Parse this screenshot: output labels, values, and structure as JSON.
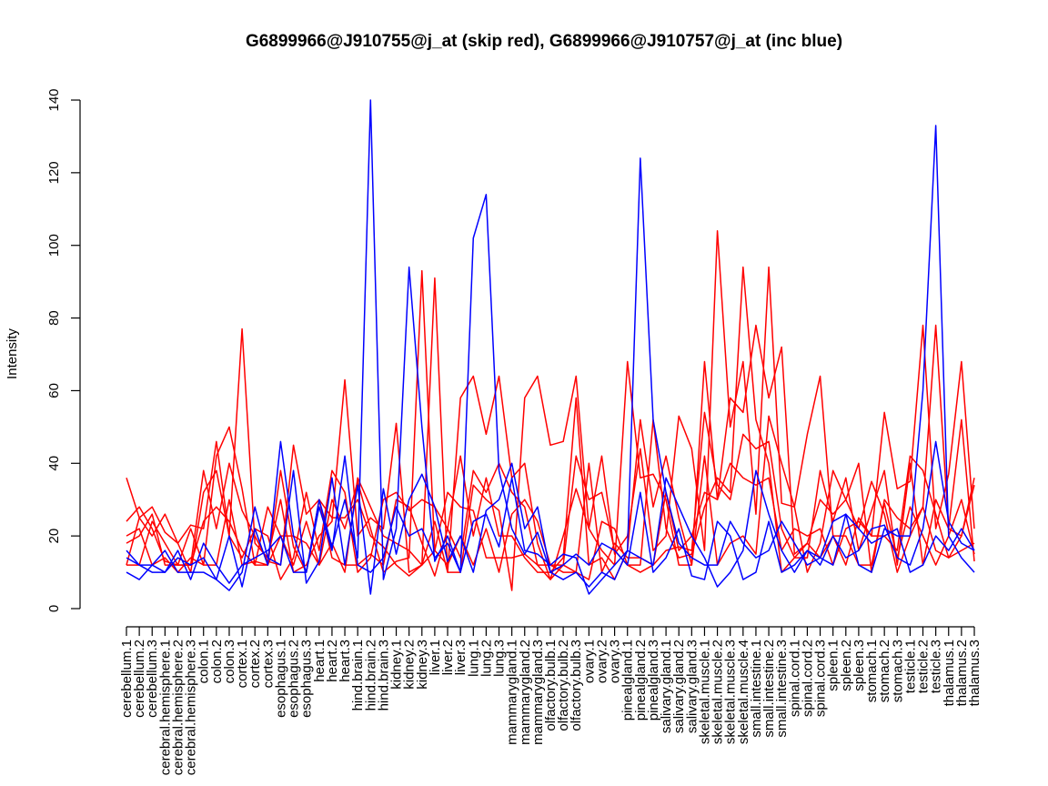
{
  "chart_data": {
    "type": "line",
    "title": "G6899966@J910755@j_at (skip red), G6899966@J910757@j_at (inc blue)",
    "xlabel": "",
    "ylabel": "Intensity",
    "ylim": [
      0,
      140
    ],
    "yticks": [
      0,
      20,
      40,
      60,
      80,
      100,
      120,
      140
    ],
    "grid": false,
    "legend": "none",
    "categories": [
      "cerebellum.1",
      "cerebellum.2",
      "cerebellum.3",
      "cerebral.hemisphere.1",
      "cerebral.hemisphere.2",
      "cerebral.hemisphere.3",
      "colon.1",
      "colon.2",
      "colon.3",
      "cortex.1",
      "cortex.2",
      "cortex.3",
      "esophagus.1",
      "esophagus.2",
      "esophagus.3",
      "heart.1",
      "heart.2",
      "heart.3",
      "hind.brain.1",
      "hind.brain.2",
      "hind.brain.3",
      "kidney.1",
      "kidney.2",
      "kidney.3",
      "liver.1",
      "liver.2",
      "liver.3",
      "lung.1",
      "lung.2",
      "lung.3",
      "mammarygland.1",
      "mammarygland.2",
      "mammarygland.3",
      "olfactory.bulb.1",
      "olfactory.bulb.2",
      "olfactory.bulb.3",
      "ovary.1",
      "ovary.2",
      "ovary.3",
      "pinealgland.1",
      "pinealgland.2",
      "pinealgland.3",
      "salivary.gland.1",
      "salivary.gland.2",
      "salivary.gland.3",
      "skeletal.muscle.1",
      "skeletal.muscle.2",
      "skeletal.muscle.3",
      "skeletal.muscle.4",
      "small.intestine.1",
      "small.intestine.2",
      "small.intestine.3",
      "spinal.cord.1",
      "spinal.cord.2",
      "spinal.cord.3",
      "spleen.1",
      "spleen.2",
      "spleen.3",
      "stomach.1",
      "stomach.2",
      "stomach.3",
      "testicle.1",
      "testicle.2",
      "testicle.3",
      "thalamus.1",
      "thalamus.2",
      "thalamus.3"
    ],
    "colors": {
      "skip": "#ff0000",
      "inc": "#0000ff"
    },
    "series": [
      {
        "group": "skip",
        "values": [
          36,
          25,
          28,
          21,
          18,
          23,
          22,
          46,
          20,
          77,
          18,
          14,
          30,
          10,
          12,
          20,
          24,
          63,
          20,
          25,
          22,
          51,
          10,
          12,
          24,
          10,
          10,
          34,
          30,
          27,
          5,
          58,
          64,
          45,
          46,
          64,
          22,
          16,
          12,
          68,
          36,
          37,
          30,
          12,
          12,
          42,
          12,
          18,
          20,
          15,
          53,
          40,
          28,
          10,
          18,
          38,
          30,
          40,
          10,
          30,
          25,
          22,
          28,
          78,
          22,
          20,
          34
        ]
      },
      {
        "group": "skip",
        "values": [
          12,
          12,
          24,
          18,
          12,
          22,
          12,
          42,
          50,
          33,
          12,
          12,
          38,
          17,
          10,
          30,
          25,
          25,
          30,
          20,
          17,
          12,
          9,
          12,
          91,
          10,
          58,
          64,
          48,
          64,
          36,
          40,
          18,
          8,
          20,
          33,
          22,
          42,
          15,
          20,
          44,
          16,
          20,
          53,
          44,
          16,
          104,
          50,
          68,
          26,
          94,
          29,
          28,
          48,
          64,
          20,
          12,
          25,
          20,
          54,
          33,
          35,
          78,
          22,
          37,
          68,
          22
        ]
      },
      {
        "group": "skip",
        "values": [
          24,
          28,
          22,
          13,
          12,
          12,
          38,
          22,
          40,
          27,
          20,
          13,
          12,
          45,
          26,
          30,
          14,
          12,
          12,
          15,
          12,
          30,
          28,
          18,
          9,
          22,
          42,
          20,
          36,
          20,
          20,
          14,
          10,
          10,
          14,
          58,
          12,
          14,
          8,
          16,
          52,
          28,
          42,
          25,
          12,
          68,
          30,
          58,
          54,
          78,
          58,
          72,
          15,
          18,
          14,
          20,
          20,
          12,
          12,
          29,
          14,
          28,
          20,
          12,
          20,
          30,
          15
        ]
      },
      {
        "group": "skip",
        "values": [
          20,
          22,
          12,
          14,
          10,
          14,
          12,
          12,
          30,
          12,
          13,
          12,
          20,
          12,
          24,
          12,
          18,
          10,
          36,
          28,
          20,
          18,
          16,
          12,
          16,
          32,
          28,
          27,
          14,
          14,
          14,
          15,
          12,
          12,
          10,
          10,
          8,
          24,
          22,
          12,
          12,
          52,
          22,
          14,
          15,
          28,
          36,
          32,
          94,
          52,
          40,
          10,
          14,
          14,
          38,
          24,
          36,
          16,
          27,
          38,
          12,
          40,
          12,
          30,
          22,
          52,
          13
        ]
      },
      {
        "group": "skip",
        "values": [
          12,
          25,
          20,
          26,
          18,
          10,
          32,
          38,
          20,
          14,
          22,
          20,
          8,
          14,
          32,
          16,
          38,
          32,
          10,
          14,
          30,
          32,
          27,
          30,
          28,
          22,
          14,
          38,
          32,
          40,
          32,
          28,
          12,
          8,
          12,
          42,
          30,
          32,
          16,
          12,
          10,
          12,
          16,
          17,
          16,
          54,
          34,
          30,
          48,
          44,
          46,
          22,
          14,
          18,
          30,
          26,
          30,
          22,
          35,
          26,
          10,
          20,
          28,
          16,
          14,
          16,
          18
        ]
      },
      {
        "group": "skip",
        "values": [
          18,
          20,
          26,
          12,
          12,
          12,
          24,
          28,
          24,
          16,
          12,
          28,
          20,
          20,
          18,
          12,
          30,
          22,
          35,
          22,
          10,
          13,
          14,
          93,
          16,
          12,
          20,
          12,
          22,
          10,
          26,
          30,
          24,
          12,
          12,
          10,
          40,
          10,
          18,
          14,
          14,
          12,
          32,
          16,
          20,
          32,
          30,
          40,
          36,
          34,
          36,
          16,
          22,
          20,
          22,
          12,
          22,
          24,
          20,
          20,
          16,
          42,
          38,
          26,
          14,
          20,
          36
        ]
      },
      {
        "group": "inc",
        "values": [
          10,
          8,
          12,
          10,
          14,
          12,
          14,
          8,
          20,
          6,
          22,
          12,
          46,
          20,
          10,
          30,
          17,
          30,
          14,
          140,
          8,
          22,
          94,
          50,
          13,
          20,
          10,
          102,
          114,
          38,
          22,
          15,
          21,
          10,
          8,
          10,
          6,
          10,
          8,
          16,
          124,
          52,
          32,
          18,
          14,
          12,
          12,
          24,
          18,
          14,
          16,
          24,
          18,
          12,
          14,
          12,
          26,
          12,
          10,
          22,
          20,
          20,
          60,
          133,
          20,
          14,
          10
        ]
      },
      {
        "group": "inc",
        "values": [
          16,
          12,
          12,
          16,
          10,
          10,
          10,
          8,
          5,
          10,
          28,
          14,
          12,
          38,
          7,
          13,
          36,
          12,
          34,
          4,
          33,
          15,
          30,
          37,
          28,
          13,
          20,
          10,
          27,
          30,
          40,
          22,
          28,
          10,
          12,
          15,
          12,
          18,
          16,
          12,
          32,
          10,
          14,
          22,
          9,
          8,
          24,
          20,
          8,
          10,
          24,
          10,
          12,
          16,
          12,
          20,
          14,
          16,
          22,
          23,
          14,
          12,
          22,
          46,
          24,
          18,
          16
        ]
      },
      {
        "group": "inc",
        "values": [
          14,
          12,
          10,
          10,
          16,
          8,
          18,
          12,
          7,
          12,
          14,
          16,
          20,
          10,
          10,
          28,
          16,
          42,
          12,
          10,
          14,
          28,
          20,
          22,
          14,
          18,
          10,
          24,
          26,
          17,
          36,
          16,
          15,
          12,
          15,
          14,
          4,
          8,
          12,
          16,
          14,
          12,
          36,
          28,
          20,
          14,
          6,
          10,
          16,
          38,
          26,
          16,
          10,
          16,
          14,
          24,
          26,
          22,
          18,
          20,
          22,
          10,
          12,
          20,
          16,
          22,
          16
        ]
      }
    ]
  }
}
